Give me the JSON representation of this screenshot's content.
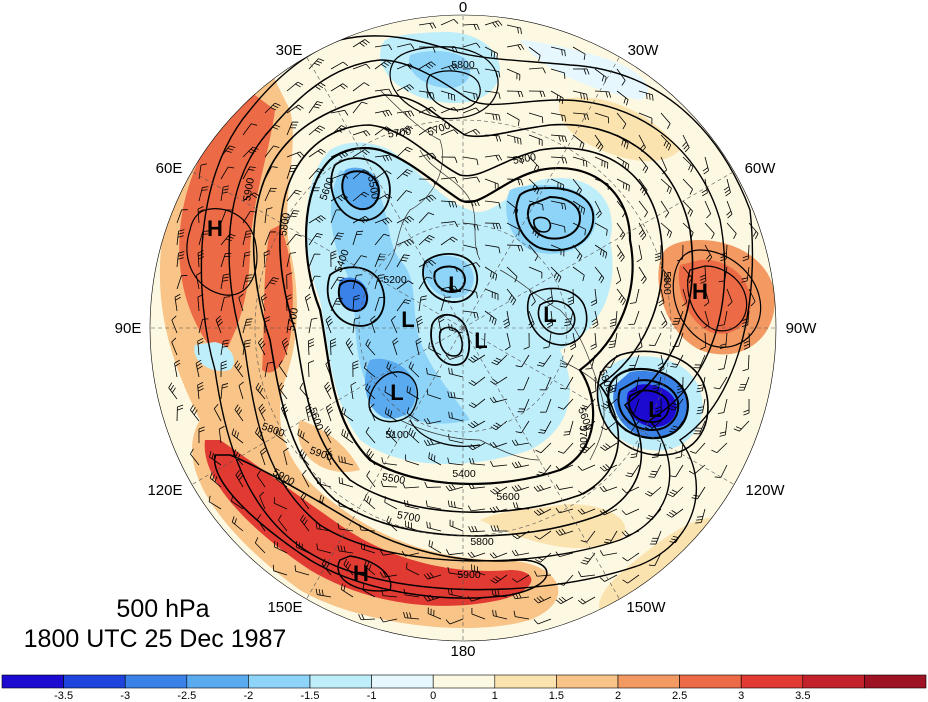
{
  "title": {
    "level": "500 hPa",
    "datetime": "1800 UTC 25 Dec 1987"
  },
  "longitude_labels": [
    {
      "text": "0",
      "lon": 0
    },
    {
      "text": "30W",
      "lon": -30
    },
    {
      "text": "60W",
      "lon": -60
    },
    {
      "text": "90W",
      "lon": -90
    },
    {
      "text": "120W",
      "lon": -120
    },
    {
      "text": "150W",
      "lon": -150
    },
    {
      "text": "180",
      "lon": 180
    },
    {
      "text": "150E",
      "lon": 150
    },
    {
      "text": "120E",
      "lon": 120
    },
    {
      "text": "90E",
      "lon": 90
    },
    {
      "text": "60E",
      "lon": 60
    },
    {
      "text": "30E",
      "lon": 30
    }
  ],
  "pressure_centers": [
    {
      "type": "H",
      "name": "high-ural"
    },
    {
      "type": "H",
      "name": "high-atlantic"
    },
    {
      "type": "H",
      "name": "high-pacific"
    },
    {
      "type": "L",
      "name": "low-north-pole-a"
    },
    {
      "type": "L",
      "name": "low-north-pole-b"
    },
    {
      "type": "L",
      "name": "low-north-pole-c"
    },
    {
      "type": "L",
      "name": "low-canada"
    },
    {
      "type": "L",
      "name": "low-siberia"
    },
    {
      "type": "L",
      "name": "low-labrador"
    }
  ],
  "contour_labels": [
    {
      "text": "5800",
      "name": "cl-1"
    },
    {
      "text": "5700",
      "name": "cl-2"
    },
    {
      "text": "5700",
      "name": "cl-3"
    },
    {
      "text": "5800",
      "name": "cl-4"
    },
    {
      "text": "5500",
      "name": "cl-5"
    },
    {
      "text": "5600",
      "name": "cl-6"
    },
    {
      "text": "5400",
      "name": "cl-7"
    },
    {
      "text": "5200",
      "name": "cl-8"
    },
    {
      "text": "5900",
      "name": "cl-9"
    },
    {
      "text": "5800",
      "name": "cl-10"
    },
    {
      "text": "5700",
      "name": "cl-11"
    },
    {
      "text": "5900",
      "name": "cl-12"
    },
    {
      "text": "5800",
      "name": "cl-13"
    },
    {
      "text": "5600",
      "name": "cl-14"
    },
    {
      "text": "5100",
      "name": "cl-15"
    },
    {
      "text": "5500",
      "name": "cl-16"
    },
    {
      "text": "5400",
      "name": "cl-17"
    },
    {
      "text": "5600",
      "name": "cl-18"
    },
    {
      "text": "5700",
      "name": "cl-19"
    },
    {
      "text": "5800",
      "name": "cl-20"
    },
    {
      "text": "5900",
      "name": "cl-21"
    },
    {
      "text": "5800",
      "name": "cl-22"
    },
    {
      "text": "5700",
      "name": "cl-23"
    },
    {
      "text": "5600",
      "name": "cl-24"
    },
    {
      "text": "5900",
      "name": "cl-25"
    },
    {
      "text": "5900",
      "name": "cl-26"
    }
  ],
  "colorbar": {
    "colors": [
      "#1c0ad0",
      "#1f44dd",
      "#3a82e8",
      "#5aaaf0",
      "#8ed4f8",
      "#bfeefb",
      "#e6f8fd",
      "#fdf8e1",
      "#fbe3b0",
      "#f8c487",
      "#f29a62",
      "#ec6a45",
      "#e03a32",
      "#c3222c",
      "#9e1323"
    ],
    "ticks": [
      "-3.5",
      "-3",
      "-2.5",
      "-2",
      "-1.5",
      "-1",
      "0",
      "1",
      "1.5",
      "2",
      "2.5",
      "3",
      "3.5"
    ]
  }
}
